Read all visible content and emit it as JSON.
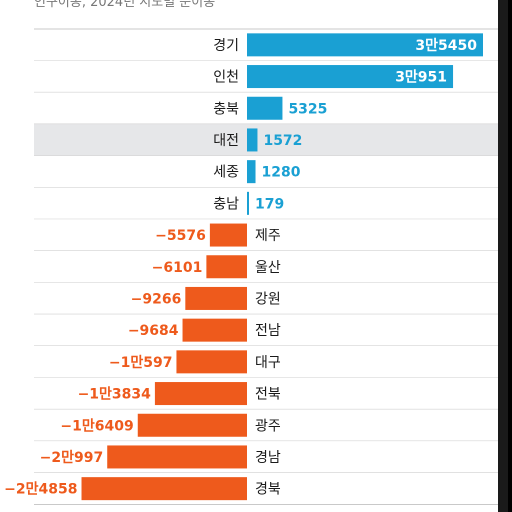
{
  "caption": "인구이동, 2024년 시도별 순이동",
  "colors": {
    "positive": "#1aa0d3",
    "negative": "#ee5a1c",
    "highlight_row": "#e6e7e9"
  },
  "chart_data": {
    "type": "bar",
    "orientation": "horizontal",
    "highlighted_category": "대전",
    "categories": [
      "경기",
      "인천",
      "충북",
      "대전",
      "세종",
      "충남",
      "제주",
      "울산",
      "강원",
      "전남",
      "대구",
      "전북",
      "광주",
      "경남",
      "경북"
    ],
    "values": [
      35450,
      30951,
      5325,
      1572,
      1280,
      179,
      -5576,
      -6101,
      -9266,
      -9684,
      -10597,
      -13834,
      -16409,
      -20997,
      -24858
    ],
    "value_labels": [
      "3만5450",
      "3만951",
      "5325",
      "1572",
      "1280",
      "179",
      "−5576",
      "−6101",
      "−9266",
      "−9684",
      "−1만597",
      "−1만3834",
      "−1만6409",
      "−2만997",
      "−2만4858"
    ]
  }
}
